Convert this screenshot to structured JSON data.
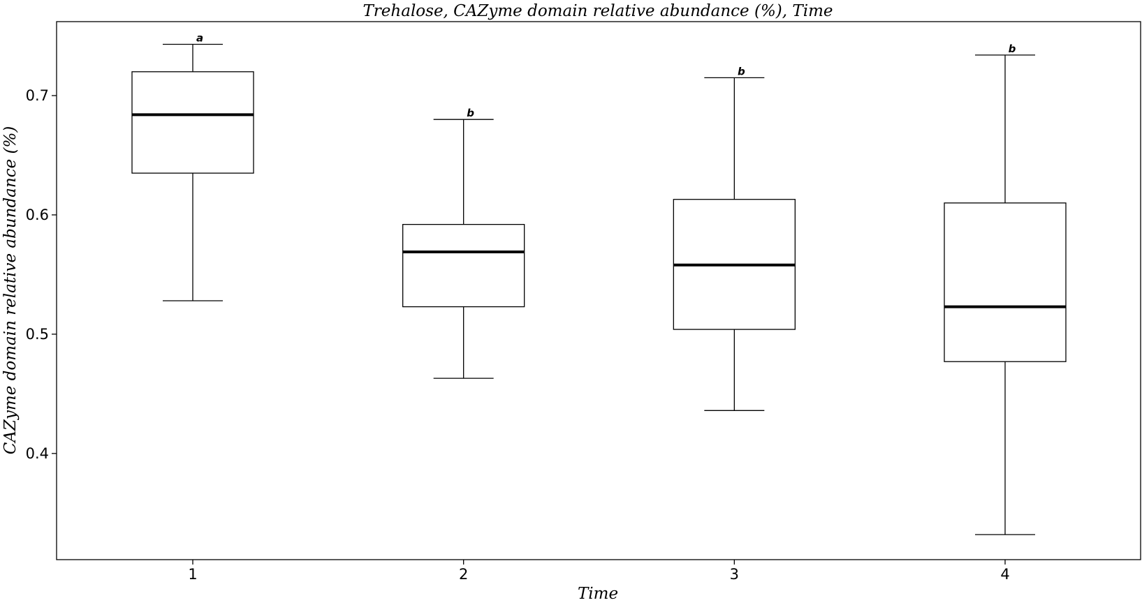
{
  "chart_data": {
    "type": "box",
    "title": "Trehalose, CAZyme domain relative abundance (%), Time",
    "xlabel": "Time",
    "ylabel": "CAZyme domain relative abundance (%)",
    "ylim": [
      0.311,
      0.762
    ],
    "yticks": [
      0.4,
      0.5,
      0.6,
      0.7
    ],
    "ytick_labels": [
      "0.4",
      "0.5",
      "0.6",
      "0.7"
    ],
    "grid": false,
    "categories": [
      "1",
      "2",
      "3",
      "4"
    ],
    "boxes": [
      {
        "category": "1",
        "whisker_low": 0.528,
        "q1": 0.635,
        "median": 0.684,
        "q3": 0.72,
        "whisker_high": 0.743,
        "letter": "a"
      },
      {
        "category": "2",
        "whisker_low": 0.463,
        "q1": 0.523,
        "median": 0.569,
        "q3": 0.592,
        "whisker_high": 0.68,
        "letter": "b"
      },
      {
        "category": "3",
        "whisker_low": 0.436,
        "q1": 0.504,
        "median": 0.558,
        "q3": 0.613,
        "whisker_high": 0.715,
        "letter": "b"
      },
      {
        "category": "4",
        "whisker_low": 0.332,
        "q1": 0.477,
        "median": 0.523,
        "q3": 0.61,
        "whisker_high": 0.734,
        "letter": "b"
      }
    ]
  }
}
